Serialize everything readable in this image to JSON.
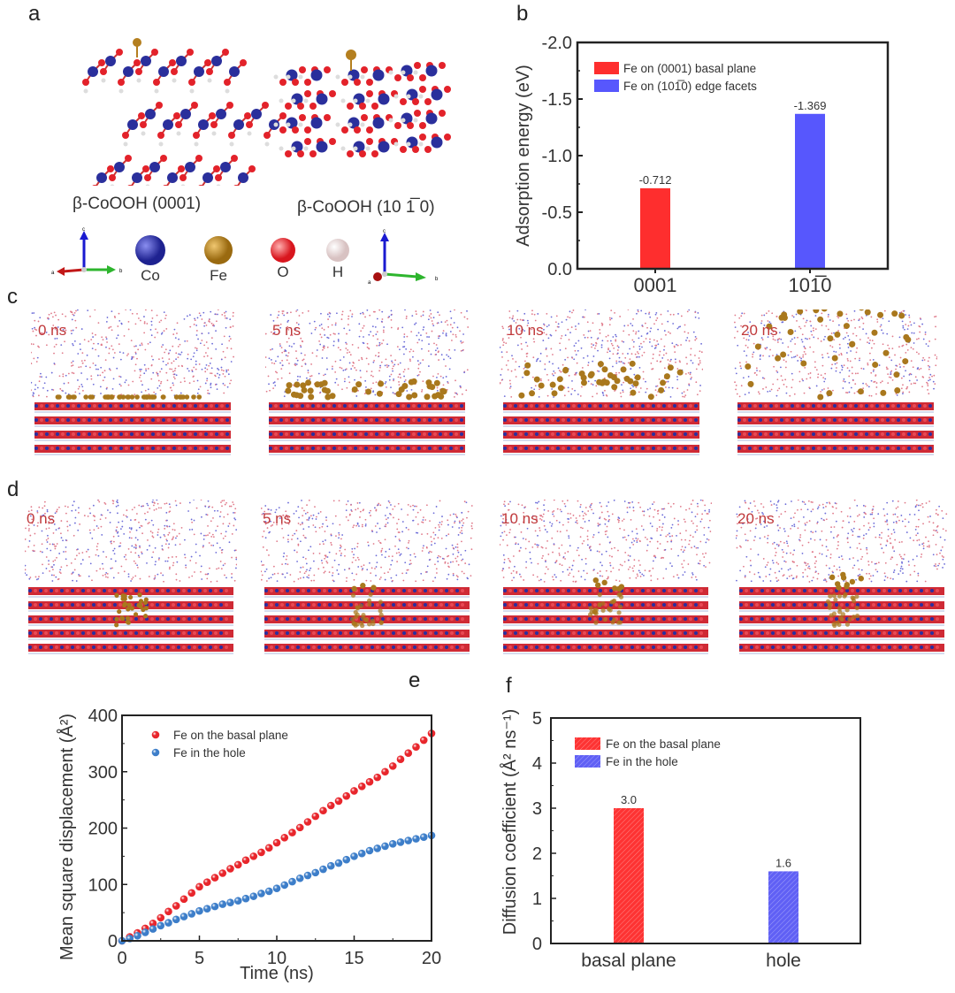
{
  "panels": {
    "a": {
      "label": "a",
      "captions": [
        "β-CoOOH (0001)",
        "β-CoOOH (10 1̅ 0)"
      ],
      "axes": {
        "a": "a",
        "b": "b",
        "c": "c"
      },
      "elements": [
        {
          "symbol": "Co",
          "color": "#2a2f9c"
        },
        {
          "symbol": "Fe",
          "color": "#b47f1f"
        },
        {
          "symbol": "O",
          "color": "#e3222a"
        },
        {
          "symbol": "H",
          "color": "#f1e4e4"
        }
      ]
    },
    "b": {
      "label": "b"
    },
    "c": {
      "label": "c",
      "times": [
        "0 ns",
        "5 ns",
        "10 ns",
        "20 ns"
      ]
    },
    "d": {
      "label": "d",
      "times": [
        "0 ns",
        "5 ns",
        "10 ns",
        "20 ns"
      ]
    },
    "e": {
      "label": "e"
    },
    "f": {
      "label": "f"
    }
  },
  "chart_data": [
    {
      "id": "b",
      "type": "bar",
      "categories": [
        "0001",
        "101̅0"
      ],
      "series": [
        {
          "name": "Fe on (0001) basal plane",
          "values": [
            -0.712,
            null
          ],
          "color": "#fe2e2e"
        },
        {
          "name": "Fe on (101̅0) edge facets",
          "values": [
            null,
            -1.369
          ],
          "color": "#5757fd"
        }
      ],
      "data_labels": [
        "-0.712",
        "-1.369"
      ],
      "ylabel": "Adsorption energy (eV)",
      "xlabel": "",
      "ylim": [
        0.0,
        -2.0
      ],
      "y_inverted": true,
      "yticks": [
        "0.0",
        "-0.5",
        "-1.0",
        "-1.5",
        "-2.0"
      ],
      "legend": "top-left",
      "grid": false
    },
    {
      "id": "e",
      "type": "scatter",
      "xlabel": "Time (ns)",
      "ylabel": "Mean square displacement (Å²)",
      "xlim": [
        0,
        20
      ],
      "ylim": [
        0,
        400
      ],
      "xticks": [
        "0",
        "5",
        "10",
        "15",
        "20"
      ],
      "yticks": [
        "0",
        "100",
        "200",
        "300",
        "400"
      ],
      "legend": "top-left",
      "grid": false,
      "x": [
        0,
        0.5,
        1,
        1.5,
        2,
        2.5,
        3,
        3.5,
        4,
        4.5,
        5,
        5.5,
        6,
        6.5,
        7,
        7.5,
        8,
        8.5,
        9,
        9.5,
        10,
        10.5,
        11,
        11.5,
        12,
        12.5,
        13,
        13.5,
        14,
        14.5,
        15,
        15.5,
        16,
        16.5,
        17,
        17.5,
        18,
        18.5,
        19,
        19.5,
        20
      ],
      "series": [
        {
          "name": "Fe on the basal plane",
          "color": "#e8262c",
          "values": [
            0,
            7,
            14,
            22,
            31,
            41,
            52,
            62,
            74,
            85,
            96,
            104,
            112,
            120,
            128,
            135,
            143,
            150,
            157,
            165,
            174,
            183,
            192,
            201,
            211,
            221,
            231,
            240,
            248,
            257,
            266,
            274,
            282,
            290,
            300,
            310,
            322,
            333,
            344,
            356,
            368
          ]
        },
        {
          "name": "Fe in the hole",
          "color": "#3d7ec9",
          "values": [
            0,
            4,
            9,
            15,
            21,
            27,
            32,
            38,
            43,
            48,
            53,
            57,
            61,
            65,
            68,
            71,
            75,
            79,
            84,
            88,
            93,
            99,
            105,
            111,
            116,
            121,
            127,
            133,
            138,
            144,
            150,
            155,
            160,
            164,
            168,
            172,
            175,
            178,
            181,
            184,
            187
          ]
        }
      ]
    },
    {
      "id": "f",
      "type": "bar",
      "categories": [
        "basal plane",
        "hole"
      ],
      "series": [
        {
          "name": "Fe on the basal plane",
          "values": [
            3.0,
            null
          ],
          "color": "#fe3333"
        },
        {
          "name": "Fe in the hole",
          "values": [
            null,
            1.6
          ],
          "color": "#6060f5"
        }
      ],
      "data_labels": [
        "3.0",
        "1.6"
      ],
      "ylabel": "Diffusion coefficient (Å² ns⁻¹)",
      "xlabel": "",
      "ylim": [
        0,
        5
      ],
      "yticks": [
        "0",
        "1",
        "2",
        "3",
        "4",
        "5"
      ],
      "hatched": true,
      "legend": "top-left",
      "grid": false
    }
  ]
}
